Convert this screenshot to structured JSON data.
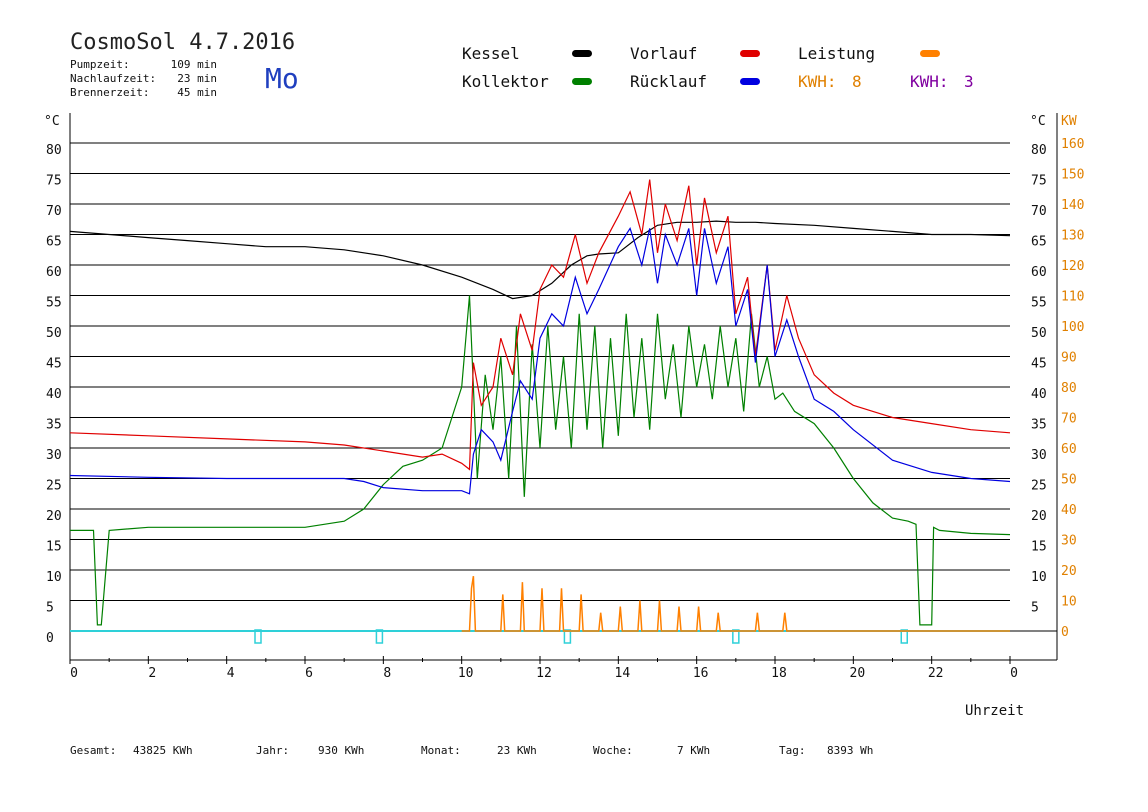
{
  "header": {
    "title": "CosmoSol 4.7.2016",
    "day": "Mo",
    "timers": [
      {
        "label": "Pumpzeit:",
        "value": "109 min"
      },
      {
        "label": "Nachlaufzeit:",
        "value": "23 min"
      },
      {
        "label": "Brennerzeit:",
        "value": "45 min"
      }
    ]
  },
  "legend": {
    "kessel": {
      "label": "Kessel",
      "color": "#000000"
    },
    "kollektor": {
      "label": "Kollektor",
      "color": "#008000"
    },
    "vorlauf": {
      "label": "Vorlauf",
      "color": "#e00000"
    },
    "ruecklauf": {
      "label": "Rücklauf",
      "color": "#0000e0"
    },
    "leistung": {
      "label": "Leistung",
      "color": "#ff8000"
    },
    "kwh1": {
      "label": "KWH:",
      "value": "8",
      "color": "#e08000"
    },
    "kwh2": {
      "label": "KWH:",
      "value": "3",
      "color": "#8000a0"
    }
  },
  "footer": {
    "items": [
      {
        "label": "Gesamt:",
        "value": "43825 KWh"
      },
      {
        "label": "Jahr:",
        "value": "930 KWh"
      },
      {
        "label": "Monat:",
        "value": "23 KWh"
      },
      {
        "label": "Woche:",
        "value": "7 KWh"
      },
      {
        "label": "Tag:",
        "value": "8393 Wh"
      }
    ]
  },
  "chart_data": {
    "type": "line",
    "xlabel": "Uhrzeit",
    "ylabel_left": "°C",
    "ylabel_right_temp": "°C",
    "ylabel_right_power": "KW",
    "xlim": [
      0,
      24
    ],
    "ylim": [
      0,
      80
    ],
    "y2lim": [
      0,
      160
    ],
    "x_ticks": [
      "0",
      "2",
      "4",
      "6",
      "8",
      "10",
      "12",
      "14",
      "16",
      "18",
      "20",
      "22",
      "0"
    ],
    "y_ticks": [
      0,
      5,
      10,
      15,
      20,
      25,
      30,
      35,
      40,
      45,
      50,
      55,
      60,
      65,
      70,
      75,
      80
    ],
    "y2_ticks": [
      0,
      10,
      20,
      30,
      40,
      50,
      60,
      70,
      80,
      90,
      100,
      110,
      120,
      130,
      140,
      150,
      160
    ],
    "series": [
      {
        "name": "Kessel",
        "color": "#000000",
        "x": [
          0,
          1,
          2,
          3,
          4,
          5,
          6,
          7,
          8,
          9,
          10,
          10.8,
          11.3,
          11.8,
          12.3,
          12.8,
          13.2,
          13.5,
          14,
          14.5,
          15,
          15.5,
          16,
          16.5,
          17,
          17.5,
          18,
          19,
          20,
          21,
          22,
          23,
          24
        ],
        "y": [
          65.5,
          65,
          64.5,
          64,
          63.5,
          63,
          63,
          62.5,
          61.5,
          60,
          58,
          56,
          54.5,
          55,
          57,
          60,
          61.5,
          61.8,
          62,
          64.5,
          66.5,
          67,
          67,
          67.2,
          67,
          67,
          66.8,
          66.5,
          66,
          65.5,
          65,
          65,
          64.8
        ]
      },
      {
        "name": "Kollektor",
        "color": "#008000",
        "x": [
          0,
          0.6,
          0.7,
          0.8,
          1,
          2,
          4,
          6,
          7,
          7.5,
          8,
          8.5,
          9,
          9.5,
          10,
          10.2,
          10.4,
          10.6,
          10.8,
          11,
          11.2,
          11.4,
          11.6,
          11.8,
          12,
          12.2,
          12.4,
          12.6,
          12.8,
          13,
          13.2,
          13.4,
          13.6,
          13.8,
          14,
          14.2,
          14.4,
          14.6,
          14.8,
          15,
          15.2,
          15.4,
          15.6,
          15.8,
          16,
          16.2,
          16.4,
          16.6,
          16.8,
          17,
          17.2,
          17.4,
          17.6,
          17.8,
          18,
          18.2,
          18.5,
          19,
          19.5,
          20,
          20.5,
          21,
          21.4,
          21.6,
          21.7,
          22,
          22.05,
          22.2,
          23,
          24
        ],
        "y": [
          16.5,
          16.5,
          1,
          1,
          16.5,
          17,
          17,
          17,
          18,
          20,
          24,
          27,
          28,
          30,
          40,
          55,
          25,
          42,
          33,
          45,
          25,
          50,
          22,
          47,
          30,
          50,
          33,
          45,
          30,
          52,
          33,
          50,
          30,
          48,
          32,
          52,
          35,
          48,
          33,
          52,
          38,
          47,
          35,
          50,
          40,
          47,
          38,
          50,
          40,
          48,
          36,
          52,
          40,
          45,
          38,
          39,
          36,
          34,
          30,
          25,
          21,
          18.5,
          18,
          17.5,
          1,
          1,
          17,
          16.5,
          16,
          15.8
        ]
      },
      {
        "name": "Vorlauf",
        "color": "#e00000",
        "x": [
          0,
          2,
          4,
          6,
          7,
          8,
          9,
          9.5,
          10,
          10.2,
          10.3,
          10.5,
          10.8,
          11,
          11.3,
          11.5,
          11.8,
          12,
          12.3,
          12.6,
          12.9,
          13.2,
          13.5,
          14,
          14.3,
          14.6,
          14.8,
          15,
          15.2,
          15.5,
          15.8,
          16,
          16.2,
          16.5,
          16.8,
          17,
          17.3,
          17.5,
          17.8,
          18,
          18.3,
          18.6,
          19,
          19.5,
          20,
          21,
          22,
          23,
          24
        ],
        "y": [
          32.5,
          32,
          31.5,
          31,
          30.5,
          29.5,
          28.5,
          29,
          27.5,
          26.5,
          44,
          37,
          40,
          48,
          42,
          52,
          46,
          56,
          60,
          58,
          65,
          57,
          62,
          68,
          72,
          65,
          74,
          62,
          70,
          64,
          73,
          60,
          71,
          62,
          68,
          52,
          58,
          45,
          60,
          46,
          55,
          48,
          42,
          39,
          37,
          35,
          34,
          33,
          32.5
        ]
      },
      {
        "name": "Rücklauf",
        "color": "#0000e0",
        "x": [
          0,
          2,
          4,
          6,
          7,
          7.5,
          8,
          9,
          10,
          10.2,
          10.3,
          10.5,
          10.8,
          11,
          11.3,
          11.5,
          11.8,
          12,
          12.3,
          12.6,
          12.9,
          13.2,
          13.5,
          14,
          14.3,
          14.6,
          14.8,
          15,
          15.2,
          15.5,
          15.8,
          16,
          16.2,
          16.5,
          16.8,
          17,
          17.3,
          17.5,
          17.8,
          18,
          18.3,
          18.6,
          19,
          19.5,
          20,
          21,
          22,
          23,
          24
        ],
        "y": [
          25.5,
          25.2,
          25,
          25,
          25,
          24.5,
          23.5,
          23,
          23,
          22.5,
          29,
          33,
          31,
          28,
          36,
          41,
          38,
          48,
          52,
          50,
          58,
          52,
          56,
          63,
          66,
          60,
          66,
          57,
          65,
          60,
          66,
          55,
          66,
          57,
          63,
          50,
          56,
          44,
          60,
          45,
          51,
          45,
          38,
          36,
          33,
          28,
          26,
          25,
          24.5
        ]
      },
      {
        "name": "Leistung",
        "color": "#ff8000",
        "x": [
          10,
          10.2,
          10.25,
          10.3,
          10.35,
          11,
          11.05,
          11.1,
          11.5,
          11.55,
          11.6,
          12,
          12.05,
          12.1,
          12.5,
          12.55,
          12.6,
          13,
          13.05,
          13.1,
          13.5,
          13.55,
          13.6,
          14,
          14.05,
          14.1,
          14.5,
          14.55,
          14.6,
          15,
          15.05,
          15.1,
          15.5,
          15.55,
          15.6,
          16,
          16.05,
          16.1,
          16.5,
          16.55,
          16.6,
          17.5,
          17.55,
          17.6,
          18.2,
          18.25,
          18.3,
          18.5,
          24
        ],
        "y": [
          0,
          0,
          7,
          9,
          0,
          0,
          6,
          0,
          0,
          8,
          0,
          0,
          7,
          0,
          0,
          7,
          0,
          0,
          6,
          0,
          0,
          3,
          0,
          0,
          4,
          0,
          0,
          5,
          0,
          0,
          5,
          0,
          0,
          4,
          0,
          0,
          4,
          0,
          0,
          3,
          0,
          0,
          3,
          0,
          0,
          3,
          0,
          0,
          0
        ]
      }
    ],
    "markers_x": [
      4.8,
      7.9,
      12.7,
      17.0,
      21.3
    ],
    "grid": true
  }
}
